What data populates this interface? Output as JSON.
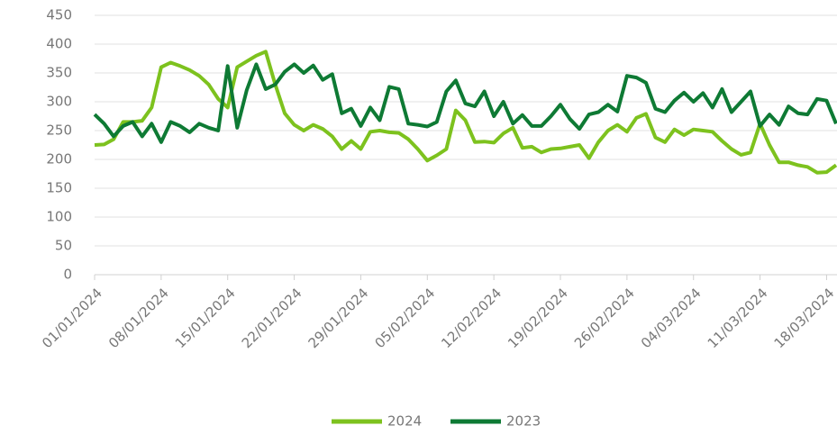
{
  "chart_data": {
    "type": "line",
    "categories": [
      "01/01/2024",
      null,
      null,
      null,
      null,
      null,
      null,
      "08/01/2024",
      null,
      null,
      null,
      null,
      null,
      null,
      "15/01/2024",
      null,
      null,
      null,
      null,
      null,
      null,
      "22/01/2024",
      null,
      null,
      null,
      null,
      null,
      null,
      "29/01/2024",
      null,
      null,
      null,
      null,
      null,
      null,
      "05/02/2024",
      null,
      null,
      null,
      null,
      null,
      null,
      "12/02/2024",
      null,
      null,
      null,
      null,
      null,
      null,
      "19/02/2024",
      null,
      null,
      null,
      null,
      null,
      null,
      "26/02/2024",
      null,
      null,
      null,
      null,
      null,
      null,
      "04/03/2024",
      null,
      null,
      null,
      null,
      null,
      null,
      "11/03/2024",
      null,
      null,
      null,
      null,
      null,
      null,
      "18/03/2024",
      null
    ],
    "series": [
      {
        "name": "2024",
        "color": "#7dc21e",
        "values": [
          225,
          226,
          235,
          265,
          265,
          267,
          290,
          360,
          368,
          362,
          355,
          345,
          330,
          305,
          290,
          360,
          370,
          380,
          387,
          330,
          280,
          260,
          250,
          260,
          253,
          240,
          218,
          232,
          218,
          248,
          250,
          247,
          246,
          235,
          218,
          198,
          207,
          218,
          285,
          268,
          230,
          231,
          229,
          245,
          255,
          220,
          222,
          212,
          218,
          219,
          222,
          225,
          202,
          230,
          250,
          260,
          248,
          272,
          279,
          238,
          230,
          252,
          242,
          252,
          250,
          248,
          232,
          218,
          208,
          212,
          262,
          225,
          195,
          195,
          190,
          187,
          177,
          178,
          190
        ]
      },
      {
        "name": "2023",
        "color": "#0e7a34",
        "values": [
          278,
          262,
          240,
          258,
          265,
          240,
          262,
          230,
          265,
          258,
          247,
          262,
          255,
          250,
          362,
          255,
          320,
          365,
          322,
          330,
          352,
          365,
          350,
          363,
          338,
          348,
          280,
          288,
          258,
          290,
          268,
          326,
          322,
          262,
          260,
          257,
          265,
          318,
          337,
          297,
          292,
          318,
          275,
          300,
          262,
          277,
          258,
          258,
          275,
          295,
          270,
          253,
          278,
          282,
          295,
          283,
          345,
          342,
          333,
          288,
          282,
          302,
          316,
          300,
          315,
          290,
          322,
          282,
          300,
          318,
          258,
          278,
          260,
          292,
          280,
          278,
          305,
          302,
          262
        ]
      }
    ],
    "ylim": [
      0,
      450
    ],
    "yticks": [
      0,
      50,
      100,
      150,
      200,
      250,
      300,
      350,
      400,
      450
    ],
    "grid": true,
    "legend": "bottom"
  }
}
